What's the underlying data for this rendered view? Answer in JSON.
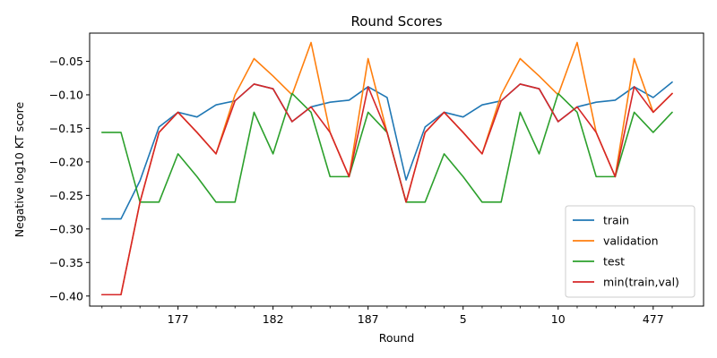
{
  "chart_data": {
    "type": "line",
    "title": "Round Scores",
    "xlabel": "Round",
    "ylabel": "Negative log10 KT score",
    "ylim": [
      -0.415,
      -0.008
    ],
    "yticks": [
      -0.4,
      -0.35,
      -0.3,
      -0.25,
      -0.2,
      -0.15,
      -0.1,
      -0.05
    ],
    "ytick_labels": [
      "−0.40",
      "−0.35",
      "−0.30",
      "−0.25",
      "−0.20",
      "−0.15",
      "−0.10",
      "−0.05"
    ],
    "xlim": [
      -0.65,
      31.65
    ],
    "major_xticks": [
      4,
      9,
      14,
      19,
      24,
      29
    ],
    "major_xtick_labels": [
      "177",
      "182",
      "187",
      "5",
      "10",
      "477"
    ],
    "minor_xticks": [
      0,
      1,
      2,
      3,
      5,
      6,
      7,
      8,
      10,
      11,
      12,
      13,
      15,
      16,
      17,
      18,
      20,
      21,
      22,
      23,
      25,
      26,
      27,
      28,
      30
    ],
    "grid": false,
    "legend_position": "lower-right",
    "series": [
      {
        "name": "train",
        "color": "#1f77b4",
        "values": [
          -0.285,
          -0.285,
          -0.228,
          -0.148,
          -0.126,
          -0.133,
          -0.115,
          -0.109,
          -0.084,
          -0.091,
          -0.14,
          -0.118,
          -0.111,
          -0.108,
          -0.088,
          -0.104,
          -0.227,
          -0.148,
          -0.126,
          -0.133,
          -0.115,
          -0.109,
          -0.084,
          -0.091,
          -0.14,
          -0.118,
          -0.111,
          -0.108,
          -0.088,
          -0.104,
          -0.081
        ]
      },
      {
        "name": "validation",
        "color": "#ff7f0e",
        "values": [
          -0.398,
          -0.398,
          -0.26,
          -0.156,
          -0.126,
          -0.156,
          -0.188,
          -0.1,
          -0.046,
          -0.072,
          -0.1,
          -0.022,
          -0.156,
          -0.222,
          -0.046,
          -0.156,
          -0.26,
          -0.156,
          -0.126,
          -0.156,
          -0.188,
          -0.1,
          -0.046,
          -0.072,
          -0.1,
          -0.022,
          -0.156,
          -0.222,
          -0.046,
          -0.126,
          -0.098
        ]
      },
      {
        "name": "test",
        "color": "#2ca02c",
        "values": [
          -0.156,
          -0.156,
          -0.26,
          -0.26,
          -0.188,
          -0.222,
          -0.26,
          -0.26,
          -0.126,
          -0.188,
          -0.098,
          -0.126,
          -0.222,
          -0.222,
          -0.126,
          -0.156,
          -0.26,
          -0.26,
          -0.188,
          -0.222,
          -0.26,
          -0.26,
          -0.126,
          -0.188,
          -0.098,
          -0.126,
          -0.222,
          -0.222,
          -0.126,
          -0.156,
          -0.126
        ]
      },
      {
        "name": "min(train,val)",
        "color": "#d62728",
        "values": [
          -0.398,
          -0.398,
          -0.26,
          -0.156,
          -0.126,
          -0.156,
          -0.188,
          -0.109,
          -0.084,
          -0.091,
          -0.14,
          -0.118,
          -0.156,
          -0.222,
          -0.088,
          -0.156,
          -0.26,
          -0.156,
          -0.126,
          -0.156,
          -0.188,
          -0.109,
          -0.084,
          -0.091,
          -0.14,
          -0.118,
          -0.156,
          -0.222,
          -0.088,
          -0.126,
          -0.098
        ]
      }
    ]
  }
}
